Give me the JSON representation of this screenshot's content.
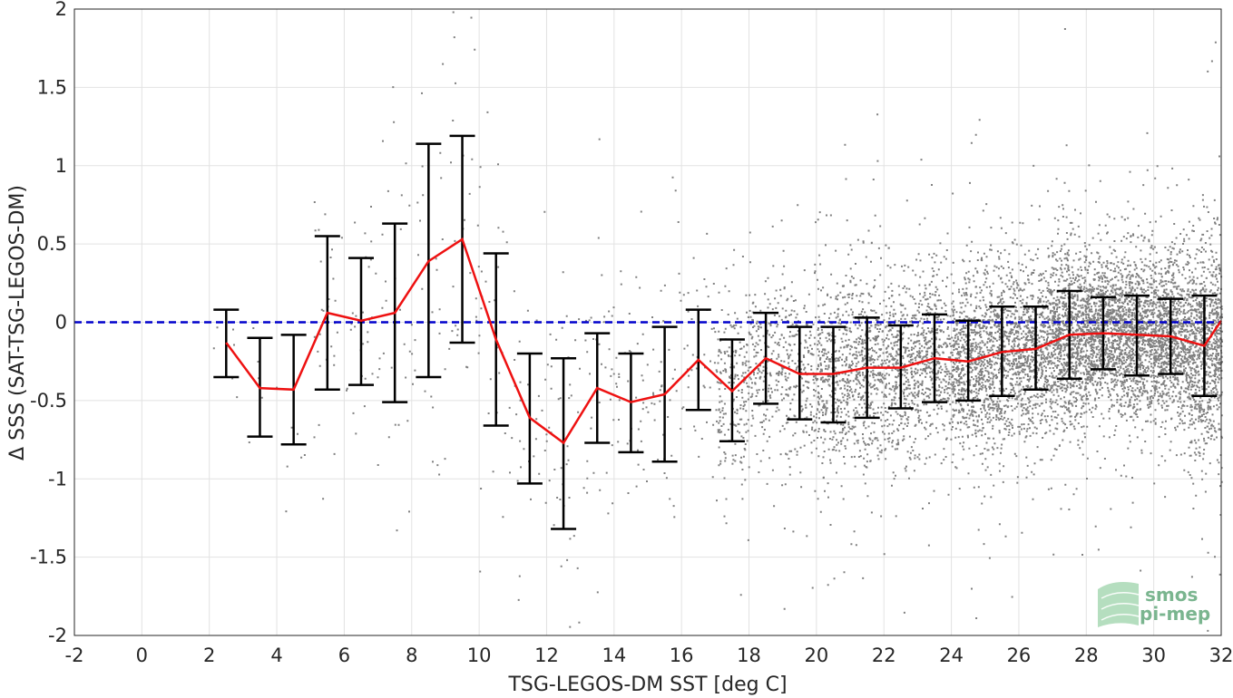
{
  "chart_data": {
    "type": "scatter",
    "xlabel": "TSG-LEGOS-DM SST [deg C]",
    "ylabel": "Δ SSS (SAT-TSG-LEGOS-DM)",
    "xlim": [
      -2,
      32
    ],
    "ylim": [
      -2,
      2
    ],
    "xticks": [
      "-2",
      "0",
      "2",
      "4",
      "6",
      "8",
      "10",
      "12",
      "14",
      "16",
      "18",
      "20",
      "22",
      "24",
      "26",
      "28",
      "30",
      "32"
    ],
    "yticks": [
      "-2",
      "-1.5",
      "-1",
      "-0.5",
      "0",
      "0.5",
      "1",
      "1.5",
      "2"
    ],
    "grid": true,
    "reference_line": {
      "y": 0,
      "color": "#0000cc",
      "style": "dashed"
    },
    "colors": {
      "scatter": "#808080",
      "mean": "#ee1111",
      "errorbar": "#000000"
    },
    "bins": {
      "x": [
        2.5,
        3.5,
        4.5,
        5.5,
        6.5,
        7.5,
        8.5,
        9.5,
        10.5,
        11.5,
        12.5,
        13.5,
        14.5,
        15.5,
        16.5,
        17.5,
        18.5,
        19.5,
        20.5,
        21.5,
        22.5,
        23.5,
        24.5,
        25.5,
        26.5,
        27.5,
        28.5,
        29.5,
        30.5,
        31.5,
        32
      ],
      "mean": [
        -0.13,
        -0.42,
        -0.43,
        0.06,
        0.01,
        0.06,
        0.39,
        0.53,
        -0.11,
        -0.61,
        -0.77,
        -0.42,
        -0.51,
        -0.46,
        -0.24,
        -0.44,
        -0.23,
        -0.33,
        -0.33,
        -0.29,
        -0.29,
        -0.23,
        -0.25,
        -0.19,
        -0.17,
        -0.08,
        -0.07,
        -0.08,
        -0.09,
        -0.15,
        0.01
      ],
      "upper": [
        0.08,
        -0.1,
        -0.08,
        0.55,
        0.41,
        0.63,
        1.14,
        1.19,
        0.44,
        -0.2,
        -0.23,
        -0.07,
        -0.2,
        -0.03,
        0.08,
        -0.11,
        0.06,
        -0.03,
        -0.03,
        0.03,
        -0.02,
        0.05,
        0.01,
        0.1,
        0.1,
        0.2,
        0.16,
        0.17,
        0.15,
        0.17,
        null
      ],
      "lower": [
        -0.35,
        -0.73,
        -0.78,
        -0.43,
        -0.4,
        -0.51,
        -0.35,
        -0.13,
        -0.66,
        -1.03,
        -1.32,
        -0.77,
        -0.83,
        -0.89,
        -0.56,
        -0.76,
        -0.52,
        -0.62,
        -0.64,
        -0.61,
        -0.55,
        -0.51,
        -0.5,
        -0.47,
        -0.43,
        -0.36,
        -0.3,
        -0.34,
        -0.33,
        -0.47,
        null
      ]
    }
  },
  "logo": {
    "line1": "smos",
    "line2": "pi-mep"
  }
}
